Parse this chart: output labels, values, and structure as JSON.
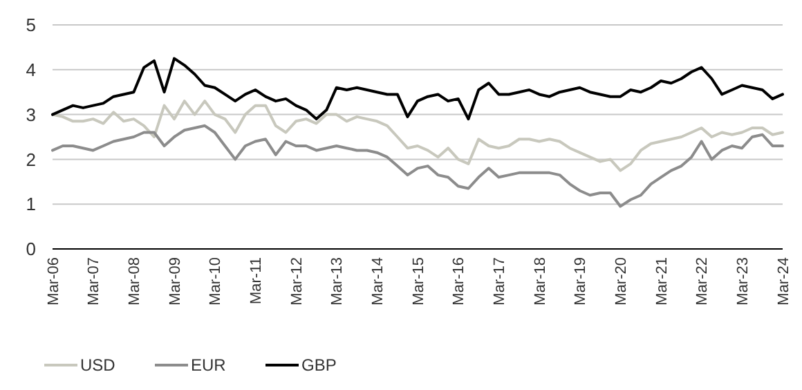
{
  "chart_data": {
    "type": "line",
    "x": [
      "2006-03",
      "2006-06",
      "2006-09",
      "2006-12",
      "2007-03",
      "2007-06",
      "2007-09",
      "2007-12",
      "2008-03",
      "2008-06",
      "2008-09",
      "2008-12",
      "2009-03",
      "2009-06",
      "2009-09",
      "2009-12",
      "2010-03",
      "2010-06",
      "2010-09",
      "2010-12",
      "2011-03",
      "2011-06",
      "2011-09",
      "2011-12",
      "2012-03",
      "2012-06",
      "2012-09",
      "2012-12",
      "2013-03",
      "2013-06",
      "2013-09",
      "2013-12",
      "2014-03",
      "2014-06",
      "2014-09",
      "2014-12",
      "2015-03",
      "2015-06",
      "2015-09",
      "2015-12",
      "2016-03",
      "2016-06",
      "2016-09",
      "2016-12",
      "2017-03",
      "2017-06",
      "2017-09",
      "2017-12",
      "2018-03",
      "2018-06",
      "2018-09",
      "2018-12",
      "2019-03",
      "2019-06",
      "2019-09",
      "2019-12",
      "2020-03",
      "2020-06",
      "2020-09",
      "2020-12",
      "2021-03",
      "2021-06",
      "2021-09",
      "2021-12",
      "2022-03",
      "2022-06",
      "2022-09",
      "2022-12",
      "2023-03",
      "2023-06",
      "2023-09",
      "2023-12",
      "2024-03"
    ],
    "series": [
      {
        "name": "USD",
        "color": "#c8c8bd",
        "values": [
          3.0,
          2.95,
          2.85,
          2.85,
          2.9,
          2.8,
          3.05,
          2.85,
          2.9,
          2.75,
          2.5,
          3.2,
          2.9,
          3.3,
          3.0,
          3.3,
          3.0,
          2.9,
          2.6,
          3.0,
          3.2,
          3.2,
          2.75,
          2.6,
          2.85,
          2.9,
          2.8,
          3.0,
          3.0,
          2.85,
          2.95,
          2.9,
          2.85,
          2.75,
          2.5,
          2.25,
          2.3,
          2.2,
          2.05,
          2.25,
          2.0,
          1.9,
          2.45,
          2.3,
          2.25,
          2.3,
          2.45,
          2.45,
          2.4,
          2.45,
          2.4,
          2.25,
          2.15,
          2.05,
          1.95,
          2.0,
          1.75,
          1.9,
          2.2,
          2.35,
          2.4,
          2.45,
          2.5,
          2.6,
          2.7,
          2.5,
          2.6,
          2.55,
          2.6,
          2.7,
          2.7,
          2.55,
          2.6
        ]
      },
      {
        "name": "EUR",
        "color": "#8c8c8c",
        "values": [
          2.2,
          2.3,
          2.3,
          2.25,
          2.2,
          2.3,
          2.4,
          2.45,
          2.5,
          2.6,
          2.6,
          2.3,
          2.5,
          2.65,
          2.7,
          2.75,
          2.6,
          2.3,
          2.0,
          2.3,
          2.4,
          2.45,
          2.1,
          2.4,
          2.3,
          2.3,
          2.2,
          2.25,
          2.3,
          2.25,
          2.2,
          2.2,
          2.15,
          2.05,
          1.85,
          1.65,
          1.8,
          1.85,
          1.65,
          1.6,
          1.4,
          1.35,
          1.6,
          1.8,
          1.6,
          1.65,
          1.7,
          1.7,
          1.7,
          1.7,
          1.65,
          1.45,
          1.3,
          1.2,
          1.25,
          1.25,
          0.95,
          1.1,
          1.2,
          1.45,
          1.6,
          1.75,
          1.85,
          2.05,
          2.4,
          2.0,
          2.2,
          2.3,
          2.25,
          2.5,
          2.55,
          2.3,
          2.3
        ]
      },
      {
        "name": "GBP",
        "color": "#000000",
        "values": [
          3.0,
          3.1,
          3.2,
          3.15,
          3.2,
          3.25,
          3.4,
          3.45,
          3.5,
          4.05,
          4.2,
          3.5,
          4.25,
          4.1,
          3.9,
          3.65,
          3.6,
          3.45,
          3.3,
          3.45,
          3.55,
          3.4,
          3.3,
          3.35,
          3.2,
          3.1,
          2.9,
          3.1,
          3.6,
          3.55,
          3.6,
          3.55,
          3.5,
          3.45,
          3.45,
          2.95,
          3.3,
          3.4,
          3.45,
          3.3,
          3.35,
          2.9,
          3.55,
          3.7,
          3.45,
          3.45,
          3.5,
          3.55,
          3.45,
          3.4,
          3.5,
          3.55,
          3.6,
          3.5,
          3.45,
          3.4,
          3.4,
          3.55,
          3.5,
          3.6,
          3.75,
          3.7,
          3.8,
          3.95,
          4.05,
          3.8,
          3.45,
          3.55,
          3.65,
          3.6,
          3.55,
          3.35,
          3.45
        ]
      }
    ],
    "xlim": [
      "2006-03",
      "2024-03"
    ],
    "xticks": [
      {
        "value": "2006-03",
        "label": "Mar-06"
      },
      {
        "value": "2007-03",
        "label": "Mar-07"
      },
      {
        "value": "2008-03",
        "label": "Mar-08"
      },
      {
        "value": "2009-03",
        "label": "Mar-09"
      },
      {
        "value": "2010-03",
        "label": "Mar-10"
      },
      {
        "value": "2011-03",
        "label": "Mar-11"
      },
      {
        "value": "2012-03",
        "label": "Mar-12"
      },
      {
        "value": "2013-03",
        "label": "Mar-13"
      },
      {
        "value": "2014-03",
        "label": "Mar-14"
      },
      {
        "value": "2015-03",
        "label": "Mar-15"
      },
      {
        "value": "2016-03",
        "label": "Mar-16"
      },
      {
        "value": "2017-03",
        "label": "Mar-17"
      },
      {
        "value": "2018-03",
        "label": "Mar-18"
      },
      {
        "value": "2019-03",
        "label": "Mar-19"
      },
      {
        "value": "2020-03",
        "label": "Mar-20"
      },
      {
        "value": "2021-03",
        "label": "Mar-21"
      },
      {
        "value": "2022-03",
        "label": "Mar-22"
      },
      {
        "value": "2023-03",
        "label": "Mar-23"
      },
      {
        "value": "2024-03",
        "label": "Mar-24"
      }
    ],
    "ylim": [
      0,
      5
    ],
    "yticks": [
      0,
      1,
      2,
      3,
      4,
      5
    ],
    "grid": "y",
    "legend": "bottom left",
    "marker": "none",
    "line_style": "solid"
  }
}
